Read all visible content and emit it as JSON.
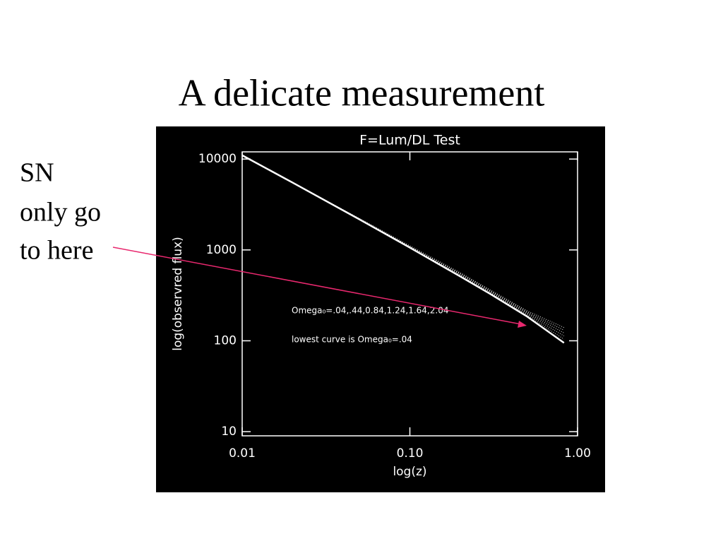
{
  "slide_title": "A delicate measurement",
  "note": [
    "SN",
    "only go",
    "to here"
  ],
  "chart_data": {
    "type": "line",
    "title": "F=Lum/DL Test",
    "xlabel": "log(z)",
    "ylabel": "log(observred flux)",
    "log_x": true,
    "log_y": true,
    "xlim": [
      0.01,
      1.0
    ],
    "ylim": [
      9,
      12000
    ],
    "xticks": [
      {
        "value": 0.01,
        "label": "0.01"
      },
      {
        "value": 0.1,
        "label": "0.10"
      },
      {
        "value": 1.0,
        "label": "1.00"
      }
    ],
    "yticks": [
      10,
      100,
      1000,
      10000
    ],
    "annotations": [
      "Omega₀=.04,.44,0.84,1.24,1.64,2.04",
      "lowest curve is Omega₀=.04"
    ],
    "x": [
      0.01,
      0.02,
      0.05,
      0.1,
      0.2,
      0.3,
      0.5,
      0.83
    ],
    "series": [
      {
        "color": "#ffffff",
        "values": [
          11000,
          5500,
          2170,
          1060,
          510,
          330,
          185,
          95
        ]
      },
      {
        "color": "#dddddd",
        "values": [
          11000,
          5500,
          2180,
          1070,
          520,
          340,
          192,
          104
        ]
      },
      {
        "color": "#dddddd",
        "values": [
          11000,
          5500,
          2190,
          1080,
          530,
          345,
          198,
          113
        ]
      },
      {
        "color": "#dddddd",
        "values": [
          11000,
          5510,
          2200,
          1090,
          540,
          352,
          203,
          122
        ]
      },
      {
        "color": "#dddddd",
        "values": [
          11000,
          5510,
          2210,
          1100,
          550,
          358,
          208,
          131
        ]
      },
      {
        "color": "#dddddd",
        "values": [
          11000,
          5520,
          2220,
          1110,
          560,
          365,
          214,
          140
        ]
      }
    ]
  }
}
